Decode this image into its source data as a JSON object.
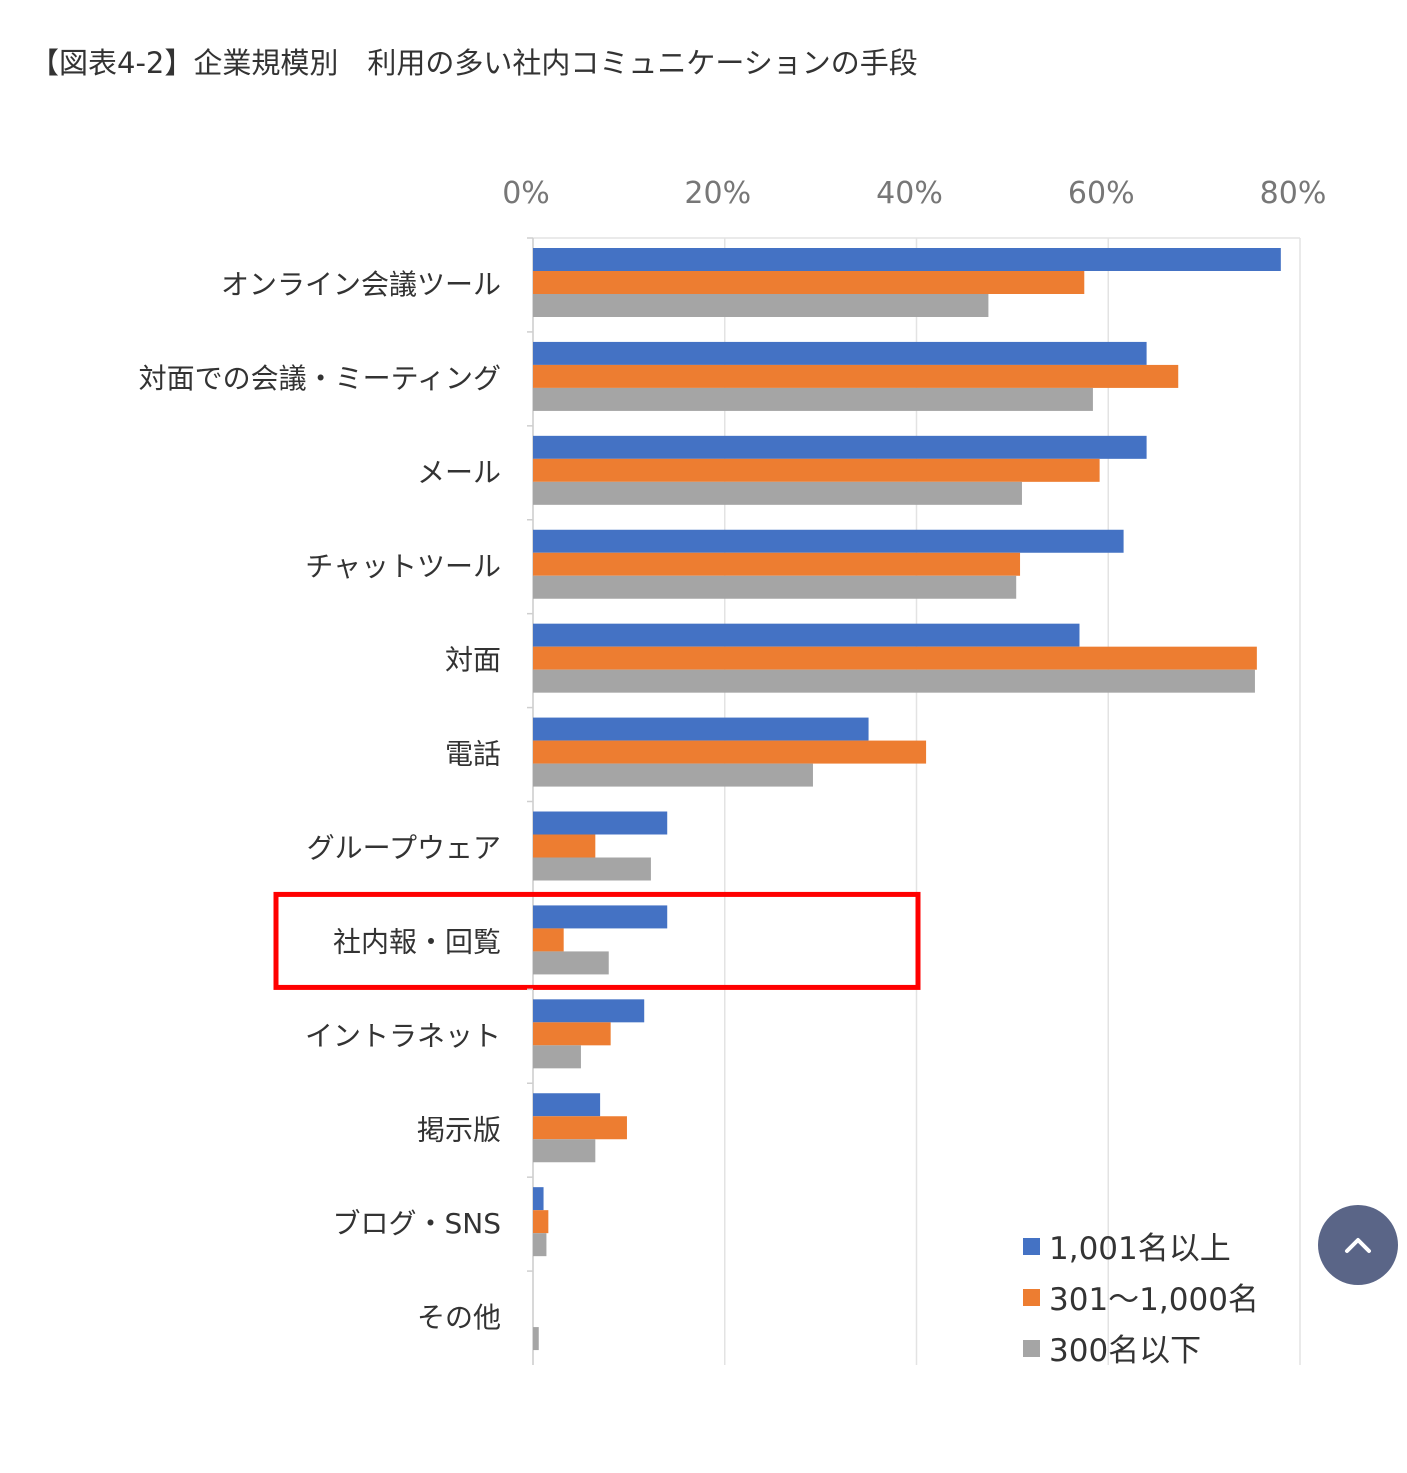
{
  "title": "【図表4-2】企業規模別　利用の多い社内コミュニケーションの手段",
  "highlight": {
    "category": "社内報・回覧",
    "color": "#ff0000"
  },
  "scroll_top_button": {
    "icon": "chevron-up-icon",
    "color": "#5a6587"
  },
  "chart_data": {
    "type": "bar",
    "orientation": "horizontal",
    "title": "",
    "xlabel": "",
    "ylabel": "",
    "xlim": [
      0,
      80
    ],
    "x_ticks": [
      "0%",
      "20%",
      "40%",
      "60%",
      "80%"
    ],
    "grid": true,
    "legend_position": "bottom-right",
    "categories": [
      "オンライン会議ツール",
      "対面での会議・ミーティング",
      "メール",
      "チャットツール",
      "対面",
      "電話",
      "グループウェア",
      "社内報・回覧",
      "イントラネット",
      "掲示版",
      "ブログ・SNS",
      "その他"
    ],
    "series": [
      {
        "name": "1,001名以上",
        "color": "#4472c4",
        "values": [
          78,
          64,
          64,
          61.6,
          57,
          35,
          14,
          14,
          11.6,
          7,
          1.1,
          0
        ]
      },
      {
        "name": "301～1,000名",
        "color": "#ed7d31",
        "values": [
          57.5,
          67.3,
          59.1,
          50.8,
          75.5,
          41,
          6.5,
          3.2,
          8.1,
          9.8,
          1.6,
          0
        ]
      },
      {
        "name": "300名以下",
        "color": "#a5a5a5",
        "values": [
          47.5,
          58.4,
          51,
          50.4,
          75.3,
          29.2,
          12.3,
          7.9,
          5,
          6.5,
          1.4,
          0.6
        ]
      }
    ]
  }
}
